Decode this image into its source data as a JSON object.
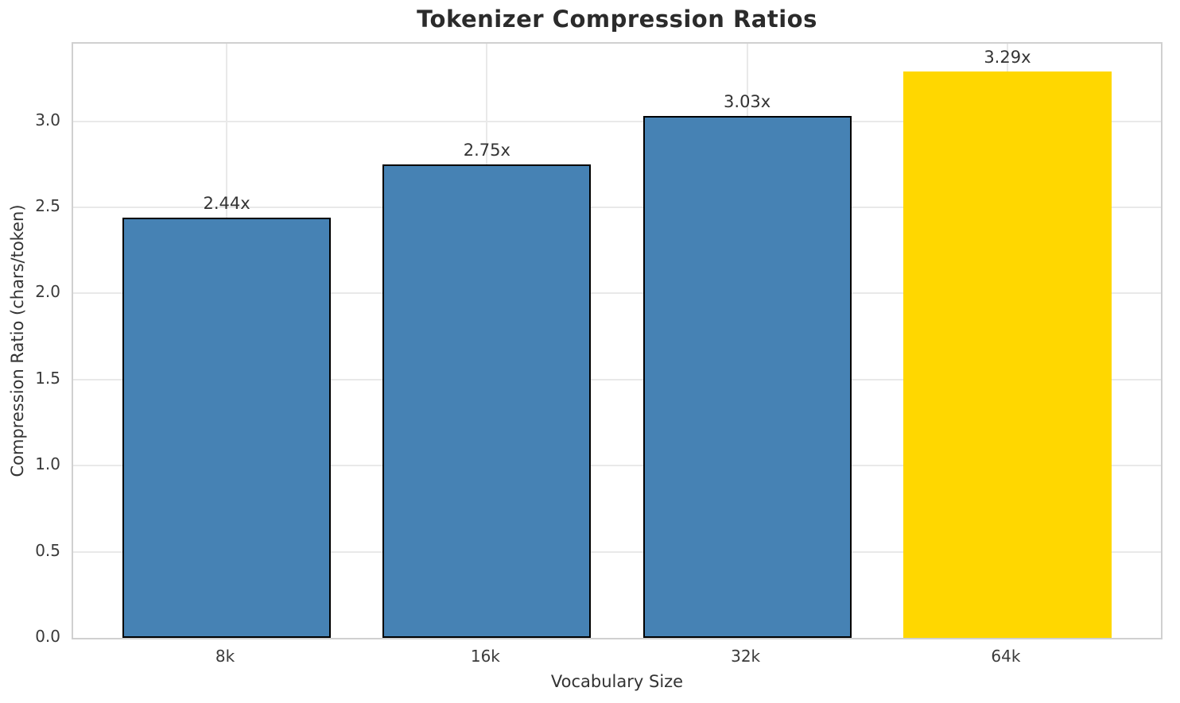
{
  "chart_data": {
    "type": "bar",
    "title": "Tokenizer Compression Ratios",
    "xlabel": "Vocabulary Size",
    "ylabel": "Compression Ratio (chars/token)",
    "categories": [
      "8k",
      "16k",
      "32k",
      "64k"
    ],
    "values": [
      2.44,
      2.75,
      3.03,
      3.29
    ],
    "bar_labels": [
      "2.44x",
      "2.75x",
      "3.03x",
      "3.29x"
    ],
    "bar_colors": [
      "#4682B4",
      "#4682B4",
      "#4682B4",
      "#FFD700"
    ],
    "bar_edge_colors": [
      "#000000",
      "#000000",
      "#000000",
      "none"
    ],
    "yticks": [
      0.0,
      0.5,
      1.0,
      1.5,
      2.0,
      2.5,
      3.0
    ],
    "ytick_labels": [
      "0.0",
      "0.5",
      "1.0",
      "1.5",
      "2.0",
      "2.5",
      "3.0"
    ],
    "ylim": [
      0,
      3.45
    ],
    "xlim": [
      -0.59,
      3.59
    ],
    "bar_width": 0.8,
    "grid": true,
    "legend": "none",
    "colors": {
      "bar_default": "#4682B4",
      "bar_highlight": "#FFD700",
      "bar_edge": "#000000",
      "grid": "#e9e9e9",
      "spine": "#d0d0d0",
      "title_text": "#2b2b2b",
      "tick_text": "#3a3a3a",
      "label_text": "#333333",
      "background": "#ffffff"
    }
  }
}
